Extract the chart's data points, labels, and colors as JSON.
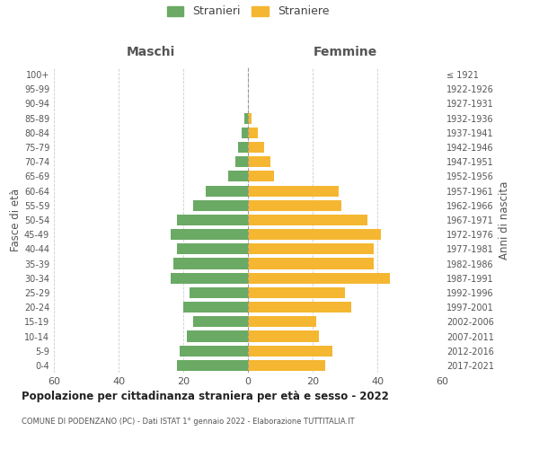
{
  "age_groups": [
    "0-4",
    "5-9",
    "10-14",
    "15-19",
    "20-24",
    "25-29",
    "30-34",
    "35-39",
    "40-44",
    "45-49",
    "50-54",
    "55-59",
    "60-64",
    "65-69",
    "70-74",
    "75-79",
    "80-84",
    "85-89",
    "90-94",
    "95-99",
    "100+"
  ],
  "birth_years": [
    "2017-2021",
    "2012-2016",
    "2007-2011",
    "2002-2006",
    "1997-2001",
    "1992-1996",
    "1987-1991",
    "1982-1986",
    "1977-1981",
    "1972-1976",
    "1967-1971",
    "1962-1966",
    "1957-1961",
    "1952-1956",
    "1947-1951",
    "1942-1946",
    "1937-1941",
    "1932-1936",
    "1927-1931",
    "1922-1926",
    "≤ 1921"
  ],
  "males": [
    22,
    21,
    19,
    17,
    20,
    18,
    24,
    23,
    22,
    24,
    22,
    17,
    13,
    6,
    4,
    3,
    2,
    1,
    0,
    0,
    0
  ],
  "females": [
    24,
    26,
    22,
    21,
    32,
    30,
    44,
    39,
    39,
    41,
    37,
    29,
    28,
    8,
    7,
    5,
    3,
    1,
    0,
    0,
    0
  ],
  "male_color": "#6aaa64",
  "female_color": "#f5b731",
  "background_color": "#ffffff",
  "grid_color": "#cccccc",
  "title": "Popolazione per cittadinanza straniera per età e sesso - 2022",
  "subtitle": "COMUNE DI PODENZANO (PC) - Dati ISTAT 1° gennaio 2022 - Elaborazione TUTTITALIA.IT",
  "xlabel_left": "Maschi",
  "xlabel_right": "Femmine",
  "ylabel_left": "Fasce di età",
  "ylabel_right": "Anni di nascita",
  "legend_male": "Stranieri",
  "legend_female": "Straniere",
  "xlim": 60
}
